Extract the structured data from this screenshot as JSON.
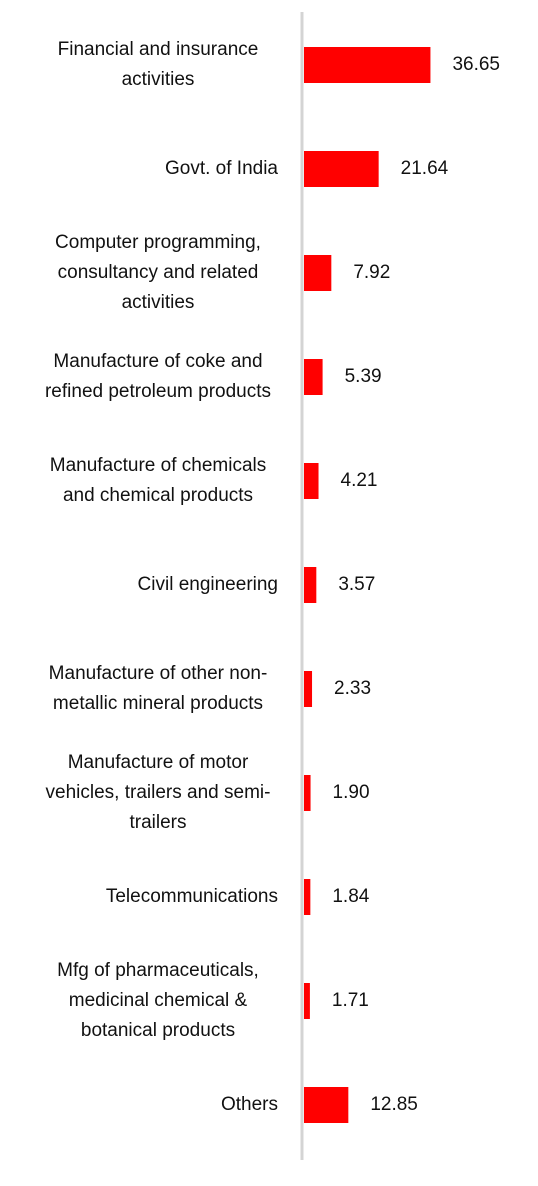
{
  "chart_data": {
    "type": "bar",
    "orientation": "horizontal",
    "color": "#ff0000",
    "categories": [
      "Financial and insurance activities",
      "Govt. of India",
      "Computer programming, consultancy and related activities",
      "Manufacture of coke and refined petroleum products",
      "Manufacture of chemicals and chemical products",
      "Civil engineering",
      "Manufacture of other non-metallic mineral products",
      "Manufacture of motor vehicles, trailers and semi-trailers",
      "Telecommunications",
      "Mfg of pharmaceuticals, medicinal chemical & botanical products",
      "Others"
    ],
    "values": [
      36.65,
      21.64,
      7.92,
      5.39,
      4.21,
      3.57,
      2.33,
      1.9,
      1.84,
      1.71,
      12.85
    ],
    "value_labels": [
      "36.65",
      "21.64",
      "7.92",
      "5.39",
      "4.21",
      "3.57",
      "2.33",
      "1.90",
      "1.84",
      "1.71",
      "12.85"
    ]
  }
}
